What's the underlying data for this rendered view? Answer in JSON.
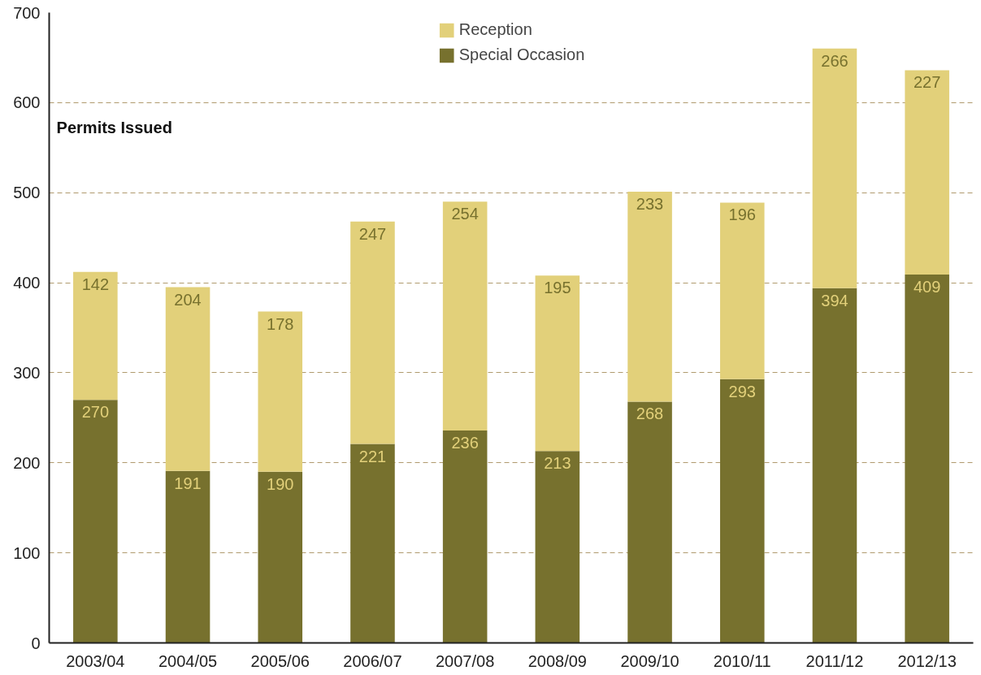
{
  "chart_data": {
    "type": "bar",
    "title": "Permits Issued",
    "stacked": true,
    "categories": [
      "2003/04",
      "2004/05",
      "2005/06",
      "2006/07",
      "2007/08",
      "2008/09",
      "2009/10",
      "2010/11",
      "2011/12",
      "2012/13"
    ],
    "series": [
      {
        "name": "Special Occasion",
        "color": "#77712e",
        "values": [
          270,
          191,
          190,
          221,
          236,
          213,
          268,
          293,
          394,
          409
        ]
      },
      {
        "name": "Reception",
        "color": "#e2d07a",
        "values": [
          142,
          204,
          178,
          247,
          254,
          195,
          233,
          196,
          266,
          227
        ]
      }
    ],
    "ylim": [
      0,
      700
    ],
    "yticks": [
      0,
      100,
      200,
      300,
      400,
      500,
      600,
      700
    ],
    "grid": "y",
    "legend": "top",
    "data_labels": true
  }
}
